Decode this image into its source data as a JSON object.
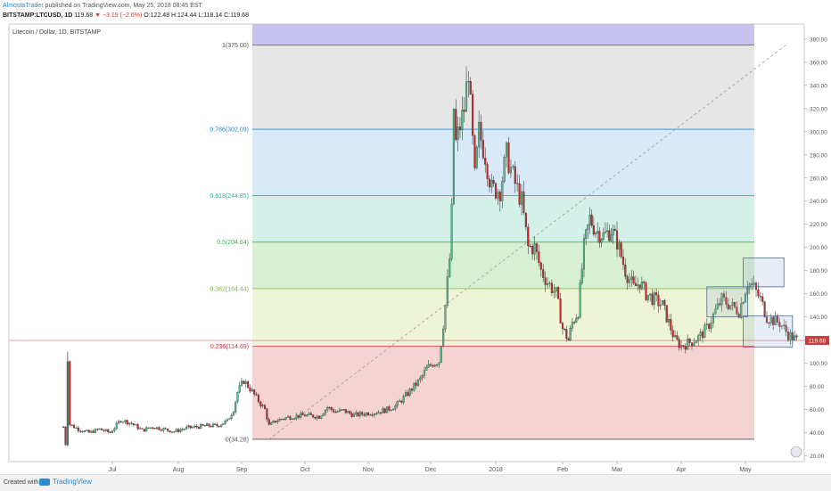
{
  "header": {
    "author": "AlmostaTrader",
    "published": "published on TradingView.com, May 25, 2018 08:45 EST",
    "symbol": "BITSTAMP:LTCUSD, 1D",
    "last": "119.68",
    "change": "▼ −3.19 (−2.6%)",
    "ohlc": "O:122.48 H:124.44 L:118.14 C:119.68"
  },
  "footer": {
    "created_with": "Created with",
    "brand": "TradingView"
  },
  "chart_data": {
    "type": "candlestick",
    "title": "Litecoin / Dollar, 1D, BITSTAMP",
    "x_ticks": [
      "Jul",
      "Aug",
      "Sep",
      "Oct",
      "Nov",
      "Dec",
      "2018",
      "Feb",
      "Mar",
      "Apr",
      "May"
    ],
    "y_ticks": [
      20,
      40,
      60,
      80,
      100,
      120,
      140,
      160,
      180,
      200,
      220,
      240,
      260,
      280,
      300,
      320,
      340,
      360,
      380
    ],
    "ylim": [
      15,
      393
    ],
    "last_price_label": "119.68",
    "last_price": 119.68,
    "fib_levels": [
      {
        "label": "1(375.00)",
        "value": 375.0,
        "color": "#555555"
      },
      {
        "label": "0.786(302.09)",
        "value": 302.09,
        "color": "#2a8bd0"
      },
      {
        "label": "0.618(244.85)",
        "value": 244.85,
        "color": "#2bb39c"
      },
      {
        "label": "0.5(204.64)",
        "value": 204.64,
        "color": "#3cb44b"
      },
      {
        "label": "0.382(164.44)",
        "value": 164.44,
        "color": "#7cb342"
      },
      {
        "label": "0.236(114.69)",
        "value": 114.69,
        "color": "#d2383b"
      },
      {
        "label": "0(34.28)",
        "value": 34.28,
        "color": "#555555"
      }
    ],
    "fib_zones": [
      {
        "from": 375.0,
        "to": 393.0,
        "color": "#c9c4ef"
      },
      {
        "from": 302.09,
        "to": 375.0,
        "color": "#e6e6e6"
      },
      {
        "from": 244.85,
        "to": 302.09,
        "color": "#d8e9f7"
      },
      {
        "from": 204.64,
        "to": 244.85,
        "color": "#d4f1e9"
      },
      {
        "from": 164.44,
        "to": 204.64,
        "color": "#d8f0d2"
      },
      {
        "from": 114.69,
        "to": 164.44,
        "color": "#eef4d6"
      },
      {
        "from": 34.28,
        "to": 114.69,
        "color": "#f6d3d3"
      }
    ],
    "trend_line": {
      "from": {
        "date": "2017-09-14",
        "value": 34.28
      },
      "to": {
        "date": "2018-05-20",
        "value": 375.0
      }
    },
    "rectangles": [
      {
        "from": "2018-04-13",
        "to": "2018-05-02",
        "low": 140,
        "high": 166
      },
      {
        "from": "2018-04-30",
        "to": "2018-05-19",
        "low": 166,
        "high": 191
      },
      {
        "from": "2018-04-30",
        "to": "2018-05-23",
        "low": 114,
        "high": 141
      }
    ],
    "price_path": [
      [
        "2017-06-08",
        45
      ],
      [
        "2017-06-09",
        30
      ],
      [
        "2017-06-10",
        105
      ],
      [
        "2017-06-11",
        47
      ],
      [
        "2017-06-15",
        43
      ],
      [
        "2017-06-20",
        40
      ],
      [
        "2017-06-25",
        43
      ],
      [
        "2017-06-30",
        40
      ],
      [
        "2017-07-05",
        51
      ],
      [
        "2017-07-10",
        48
      ],
      [
        "2017-07-15",
        42
      ],
      [
        "2017-07-20",
        45
      ],
      [
        "2017-07-25",
        43
      ],
      [
        "2017-07-30",
        41
      ],
      [
        "2017-08-05",
        44
      ],
      [
        "2017-08-10",
        45
      ],
      [
        "2017-08-15",
        46
      ],
      [
        "2017-08-20",
        46
      ],
      [
        "2017-08-25",
        50
      ],
      [
        "2017-08-28",
        60
      ],
      [
        "2017-08-30",
        75
      ],
      [
        "2017-09-02",
        85
      ],
      [
        "2017-09-05",
        78
      ],
      [
        "2017-09-08",
        70
      ],
      [
        "2017-09-12",
        60
      ],
      [
        "2017-09-14",
        46
      ],
      [
        "2017-09-17",
        50
      ],
      [
        "2017-09-20",
        52
      ],
      [
        "2017-09-25",
        54
      ],
      [
        "2017-10-01",
        55
      ],
      [
        "2017-10-08",
        54
      ],
      [
        "2017-10-12",
        62
      ],
      [
        "2017-10-16",
        58
      ],
      [
        "2017-10-20",
        59
      ],
      [
        "2017-10-25",
        55
      ],
      [
        "2017-11-01",
        57
      ],
      [
        "2017-11-06",
        58
      ],
      [
        "2017-11-10",
        60
      ],
      [
        "2017-11-14",
        63
      ],
      [
        "2017-11-18",
        70
      ],
      [
        "2017-11-22",
        78
      ],
      [
        "2017-11-26",
        86
      ],
      [
        "2017-11-29",
        95
      ],
      [
        "2017-12-02",
        100
      ],
      [
        "2017-12-05",
        102
      ],
      [
        "2017-12-08",
        150
      ],
      [
        "2017-12-10",
        190
      ],
      [
        "2017-12-11",
        230
      ],
      [
        "2017-12-12",
        320
      ],
      [
        "2017-12-13",
        290
      ],
      [
        "2017-12-15",
        305
      ],
      [
        "2017-12-17",
        320
      ],
      [
        "2017-12-19",
        355
      ],
      [
        "2017-12-20",
        320
      ],
      [
        "2017-12-22",
        260
      ],
      [
        "2017-12-24",
        300
      ],
      [
        "2017-12-27",
        280
      ],
      [
        "2017-12-30",
        250
      ],
      [
        "2018-01-03",
        250
      ],
      [
        "2018-01-06",
        280
      ],
      [
        "2018-01-10",
        255
      ],
      [
        "2018-01-13",
        240
      ],
      [
        "2018-01-16",
        200
      ],
      [
        "2018-01-19",
        200
      ],
      [
        "2018-01-22",
        180
      ],
      [
        "2018-01-25",
        170
      ],
      [
        "2018-01-29",
        160
      ],
      [
        "2018-02-01",
        130
      ],
      [
        "2018-02-04",
        120
      ],
      [
        "2018-02-06",
        135
      ],
      [
        "2018-02-09",
        145
      ],
      [
        "2018-02-12",
        200
      ],
      [
        "2018-02-15",
        225
      ],
      [
        "2018-02-18",
        215
      ],
      [
        "2018-02-22",
        210
      ],
      [
        "2018-02-26",
        215
      ],
      [
        "2018-03-01",
        205
      ],
      [
        "2018-03-05",
        180
      ],
      [
        "2018-03-09",
        165
      ],
      [
        "2018-03-12",
        170
      ],
      [
        "2018-03-15",
        160
      ],
      [
        "2018-03-19",
        155
      ],
      [
        "2018-03-23",
        150
      ],
      [
        "2018-03-26",
        135
      ],
      [
        "2018-03-29",
        120
      ],
      [
        "2018-04-01",
        115
      ],
      [
        "2018-04-05",
        118
      ],
      [
        "2018-04-09",
        122
      ],
      [
        "2018-04-13",
        130
      ],
      [
        "2018-04-17",
        145
      ],
      [
        "2018-04-20",
        155
      ],
      [
        "2018-04-24",
        150
      ],
      [
        "2018-04-28",
        145
      ],
      [
        "2018-05-02",
        170
      ],
      [
        "2018-05-05",
        165
      ],
      [
        "2018-05-08",
        155
      ],
      [
        "2018-05-11",
        140
      ],
      [
        "2018-05-14",
        137
      ],
      [
        "2018-05-17",
        135
      ],
      [
        "2018-05-21",
        125
      ],
      [
        "2018-05-25",
        119.68
      ]
    ]
  }
}
